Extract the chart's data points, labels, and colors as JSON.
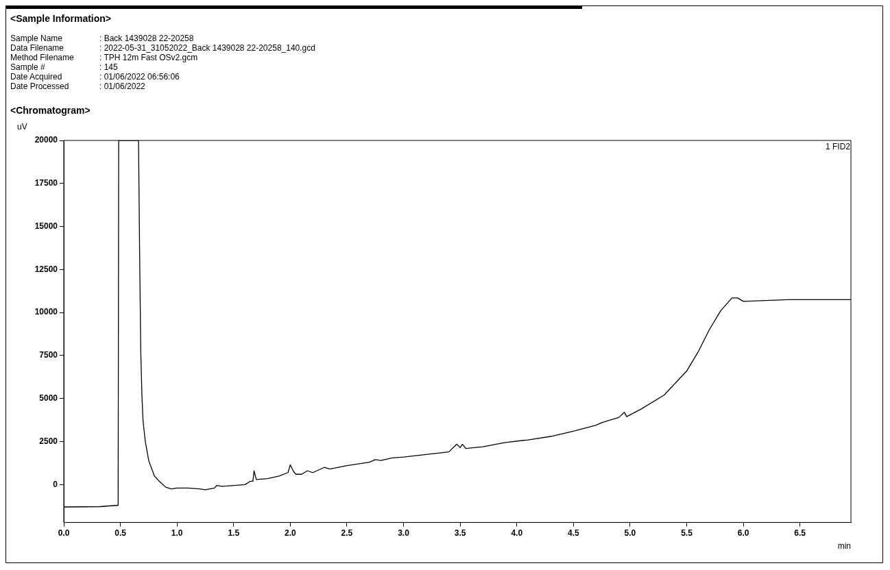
{
  "chart_data": {
    "type": "line",
    "title": "<Chromatogram>",
    "xlabel": "min",
    "ylabel": "uV",
    "annotations": [
      "<Sample Information>",
      "Sample Name",
      ": Back 1439028 22-20258",
      "Data Filename",
      ": 2022-05-31_31052022_Back 1439028 22-20258_140.gcd",
      "Method Filename",
      ": TPH 12m Fast OSv2.gcm",
      "Sample #",
      ": 145",
      "Date Acquired",
      ": 01/06/2022 06:56:06",
      "Date Processed",
      ": 01/06/2022",
      "1 FID2"
    ],
    "x": [
      0,
      0.32,
      0.48,
      0.485,
      0.66,
      0.67,
      0.68,
      0.69,
      0.7,
      0.72,
      0.75,
      0.8,
      0.85,
      0.9,
      0.95,
      1.0,
      1.1,
      1.2,
      1.25,
      1.33,
      1.35,
      1.4,
      1.5,
      1.6,
      1.65,
      1.67,
      1.68,
      1.7,
      1.8,
      1.9,
      1.98,
      2.0,
      2.03,
      2.05,
      2.1,
      2.15,
      2.2,
      2.3,
      2.35,
      2.5,
      2.7,
      2.75,
      2.8,
      2.9,
      3.0,
      3.2,
      3.4,
      3.47,
      3.5,
      3.52,
      3.55,
      3.7,
      3.9,
      4.1,
      4.3,
      4.5,
      4.7,
      4.75,
      4.9,
      4.95,
      4.97,
      5.1,
      5.3,
      5.5,
      5.6,
      5.7,
      5.8,
      5.9,
      5.95,
      6.0,
      6.2,
      6.4,
      6.6,
      6.95
    ],
    "series": [
      {
        "color": "#000000",
        "values": [
          -1300,
          -1280,
          -1200,
          20000,
          20000,
          13300,
          7700,
          5200,
          3700,
          2500,
          1400,
          500,
          150,
          -150,
          -250,
          -200,
          -200,
          -250,
          -300,
          -200,
          -50,
          -100,
          -50,
          0,
          200,
          200,
          800,
          300,
          350,
          500,
          700,
          1150,
          750,
          600,
          600,
          800,
          700,
          1000,
          900,
          1100,
          1300,
          1450,
          1400,
          1550,
          1600,
          1750,
          1900,
          2350,
          2150,
          2350,
          2100,
          2200,
          2450,
          2600,
          2800,
          3100,
          3450,
          3600,
          3900,
          4200,
          3950,
          4400,
          5200,
          6600,
          7700,
          9000,
          10100,
          10850,
          10850,
          10650,
          10700,
          10750,
          10750,
          10750
        ]
      }
    ],
    "xlim": [
      0,
      6.95
    ],
    "ylim": [
      -2200,
      20000
    ],
    "xticks": [
      {
        "value": 0,
        "label": "0.0"
      },
      0.5,
      {
        "value": 1,
        "label": "1.0"
      },
      1.5,
      {
        "value": 2,
        "label": "2.0"
      },
      2.5,
      {
        "value": 3,
        "label": "3.0"
      },
      3.5,
      {
        "value": 4,
        "label": "4.0"
      },
      4.5,
      {
        "value": 5,
        "label": "5.0"
      },
      5.5,
      {
        "value": 6,
        "label": "6.0"
      },
      6.5
    ],
    "yticks": [
      0,
      2500,
      5000,
      7500,
      10000,
      12500,
      15000,
      17500,
      20000
    ],
    "grid": false,
    "legend": false,
    "marker": "none",
    "line_style": "solid"
  }
}
